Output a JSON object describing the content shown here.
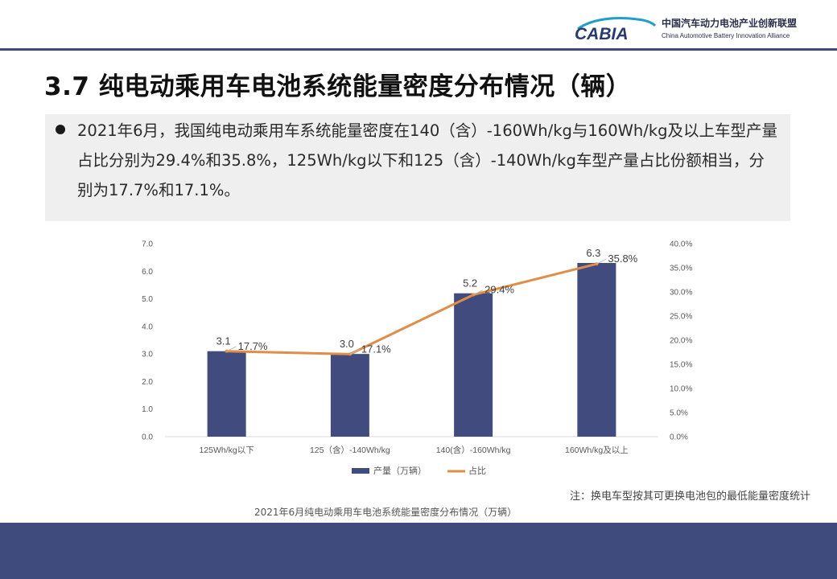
{
  "header": {
    "logo_mark": "CABIA",
    "logo_cn": "中国汽车动力电池产业创新联盟",
    "logo_en": "China Automotive Battery Innovation Alliance",
    "brand_color": "#3e4b7c"
  },
  "title": "3.7 纯电动乘用车电池系统能量密度分布情况（辆）",
  "summary": "2021年6月，我国纯电动乘用车系统能量密度在140（含）-160Wh/kg与160Wh/kg及以上车型产量占比分别为29.4%和35.8%，125Wh/kg以下和125（含）-140Wh/kg车型产量占比份额相当，分别为17.7%和17.1%。",
  "chart_data": {
    "type": "bar",
    "categories": [
      "125Wh/kg以下",
      "125（含）-140Wh/kg",
      "140(含）-160Wh/kg",
      "160Wh/kg及以上"
    ],
    "series": [
      {
        "name": "产量（万辆）",
        "type": "bar",
        "axis": "left",
        "values": [
          3.1,
          3.0,
          5.2,
          6.3
        ],
        "labels": [
          "3.1",
          "3.0",
          "5.2",
          "6.3"
        ],
        "color": "#414b7e"
      },
      {
        "name": "占比",
        "type": "line",
        "axis": "right",
        "values": [
          17.7,
          17.1,
          29.4,
          35.8
        ],
        "labels": [
          "17.7%",
          "17.1%",
          "29.4%",
          "35.8%"
        ],
        "color": "#e08d47"
      }
    ],
    "y_left": {
      "min": 0,
      "max": 7,
      "step": 1,
      "ticks": [
        "0.0",
        "1.0",
        "2.0",
        "3.0",
        "4.0",
        "5.0",
        "6.0",
        "7.0"
      ]
    },
    "y_right": {
      "min": 0,
      "max": 40,
      "step": 5,
      "ticks": [
        "0.0%",
        "5.0%",
        "10.0%",
        "15.0%",
        "20.0%",
        "25.0%",
        "30.0%",
        "35.0%",
        "40.0%"
      ]
    },
    "grid": false,
    "legend_position": "bottom",
    "caption": "2021年6月纯电动乘用车电池系统能量密度分布情况（万辆）"
  },
  "note": "注：换电车型按其可更换电池包的最低能量密度统计",
  "footer_color": "#3f4b7d"
}
